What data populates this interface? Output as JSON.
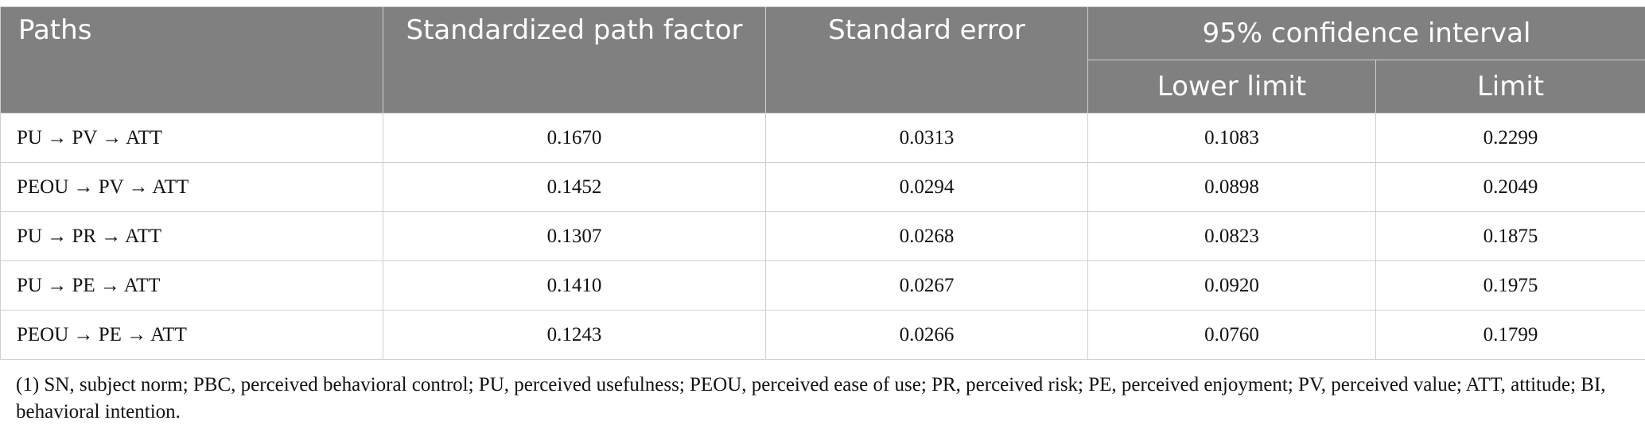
{
  "table": {
    "headers": {
      "paths": "Paths",
      "path_factor": "Standardized path factor",
      "std_error": "Standard error",
      "ci_group": "95% confidence interval",
      "lower": "Lower limit",
      "upper": "Limit"
    },
    "rows": [
      {
        "path": "PU → PV → ATT",
        "factor": "0.1670",
        "se": "0.0313",
        "lower": "0.1083",
        "upper": "0.2299"
      },
      {
        "path": "PEOU → PV → ATT",
        "factor": "0.1452",
        "se": "0.0294",
        "lower": "0.0898",
        "upper": "0.2049"
      },
      {
        "path": "PU → PR → ATT",
        "factor": "0.1307",
        "se": "0.0268",
        "lower": "0.0823",
        "upper": "0.1875"
      },
      {
        "path": "PU → PE → ATT",
        "factor": "0.1410",
        "se": "0.0267",
        "lower": "0.0920",
        "upper": "0.1975"
      },
      {
        "path": "PEOU → PE → ATT",
        "factor": "0.1243",
        "se": "0.0266",
        "lower": "0.0760",
        "upper": "0.1799"
      }
    ]
  },
  "footnote": "(1) SN, subject norm; PBC, perceived behavioral control; PU, perceived usefulness; PEOU, perceived ease of use; PR, perceived risk; PE, perceived enjoyment; PV, perceived value; ATT, attitude; BI, behavioral intention.",
  "colors": {
    "header_bg": "#808080",
    "header_text": "#ffffff",
    "grid": "#cfcfcf",
    "body_text": "#111111"
  }
}
